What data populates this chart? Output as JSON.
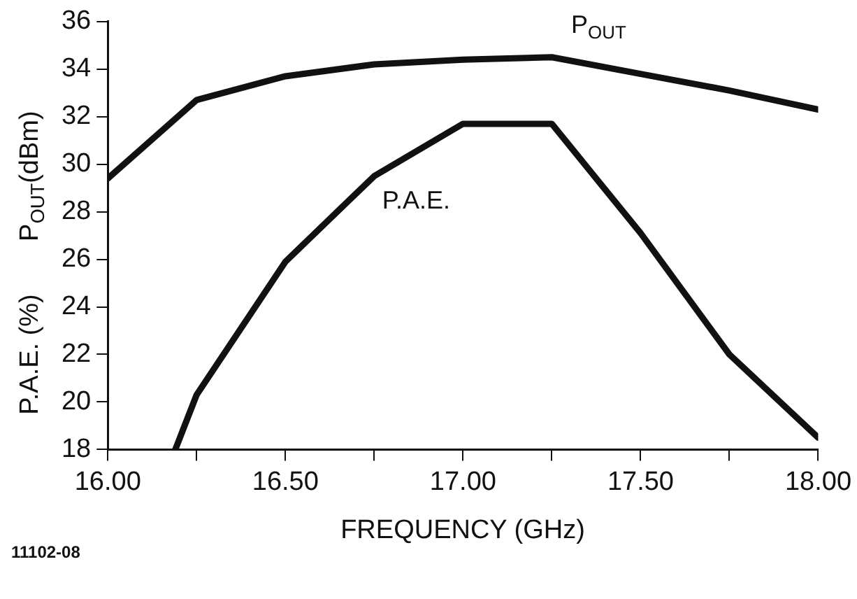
{
  "chart_data": {
    "type": "line",
    "xlabel": "FREQUENCY (GHz)",
    "ylabel": "P$_{OUT}$(dBm)",
    "annotations": [
      "P.A.E. (%)",
      "11102-08"
    ],
    "xlim": [
      16,
      18
    ],
    "xticks": [
      {
        "value": 16,
        "label": "16.00"
      },
      {
        "value": 16.25,
        "label": null
      },
      {
        "value": 16.5,
        "label": "16.50"
      },
      {
        "value": 16.75,
        "label": null
      },
      {
        "value": 17,
        "label": "17.00"
      },
      {
        "value": 17.25,
        "label": null
      },
      {
        "value": 17.5,
        "label": "17.50"
      },
      {
        "value": 17.75,
        "label": null
      },
      {
        "value": 18,
        "label": "18.00"
      }
    ],
    "ylim": [
      18,
      36
    ],
    "yticks": [
      18,
      20,
      22,
      24,
      26,
      28,
      30,
      32,
      34,
      36
    ],
    "grid": false,
    "legend": false,
    "marker": "none",
    "line_style": "solid",
    "series": [
      {
        "name": "P$_{OUT}$",
        "color": "#111111",
        "x": [
          16,
          16.25,
          16.5,
          16.75,
          17,
          17.25,
          17.5,
          17.75,
          18
        ],
        "values": [
          29.4,
          32.7,
          33.7,
          34.2,
          34.4,
          34.5,
          33.8,
          33.1,
          32.3
        ]
      },
      {
        "name": "P.A.E.",
        "color": "#111111",
        "x": [
          16.19,
          16.25,
          16.5,
          16.75,
          17,
          17.25,
          17.5,
          17.75,
          18
        ],
        "values": [
          18,
          20.3,
          25.9,
          29.5,
          31.7,
          31.7,
          27.1,
          22.0,
          18.5
        ]
      }
    ]
  }
}
